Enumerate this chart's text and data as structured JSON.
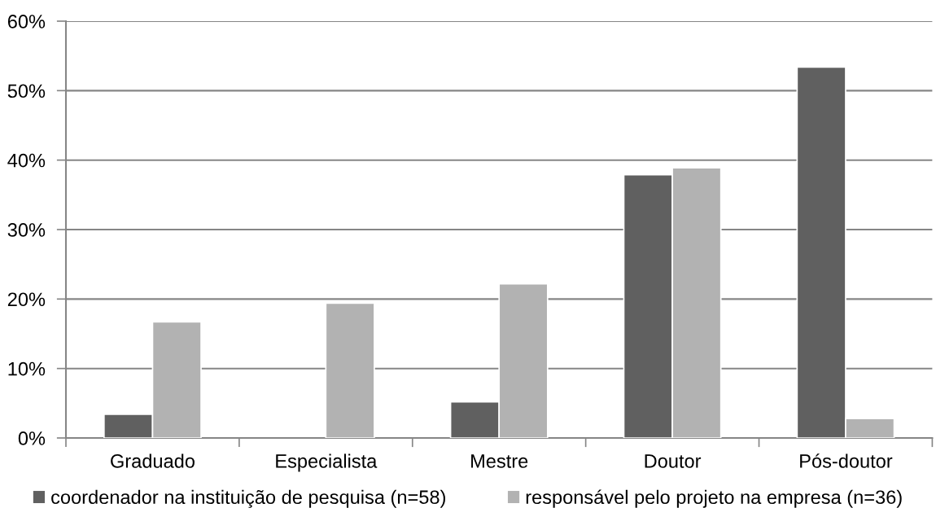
{
  "chart_data": {
    "type": "bar",
    "categories": [
      "Graduado",
      "Especialista",
      "Mestre",
      "Doutor",
      "Pós-doutor"
    ],
    "series": [
      {
        "name": "coordenador na instituição de pesquisa (n=58)",
        "color": "#606060",
        "values": [
          3.4,
          0,
          5.2,
          37.9,
          53.4
        ]
      },
      {
        "name": "responsável pelo projeto na empresa (n=36)",
        "color": "#b2b2b2",
        "values": [
          16.7,
          19.4,
          22.2,
          38.9,
          2.8
        ]
      }
    ],
    "ylim": [
      0,
      60
    ],
    "yticks": [
      {
        "value": 0,
        "label": "0%"
      },
      {
        "value": 10,
        "label": "10%"
      },
      {
        "value": 20,
        "label": "20%"
      },
      {
        "value": 30,
        "label": "30%"
      },
      {
        "value": 40,
        "label": "40%"
      },
      {
        "value": 50,
        "label": "50%"
      },
      {
        "value": 60,
        "label": "60%"
      }
    ],
    "grid": "y",
    "legend": "bottom"
  }
}
